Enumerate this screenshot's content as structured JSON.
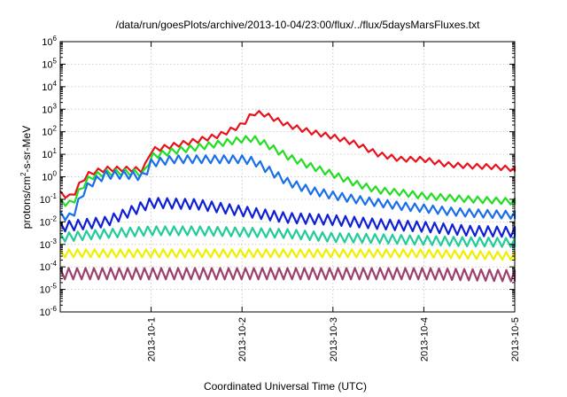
{
  "chart_data": {
    "type": "line",
    "title": "/data/run/goesPlots/archive/2013-10-04/23:00/flux/../flux/5daysMarsFluxes.txt",
    "xlabel": "Coordinated Universal Time (UTC)",
    "ylabel_main": "protons/cm",
    "ylabel_sup": "2",
    "ylabel_rest": "-s-sr-MeV",
    "x_range": [
      "2013-09-30 00:00",
      "2013-10-05 00:00"
    ],
    "x_ticks": [
      {
        "label": "2013-10-1",
        "value": "2013-10-01 00:00"
      },
      {
        "label": "2013-10-2",
        "value": "2013-10-02 00:00"
      },
      {
        "label": "2013-10-3",
        "value": "2013-10-03 00:00"
      },
      {
        "label": "2013-10-4",
        "value": "2013-10-04 00:00"
      },
      {
        "label": "2013-10-5",
        "value": "2013-10-05 00:00"
      }
    ],
    "y_scale": "log",
    "y_range": [
      1e-06,
      1000000.0
    ],
    "y_ticks": [
      {
        "base": "10",
        "exp": "-6",
        "value": 1e-06
      },
      {
        "base": "10",
        "exp": "-5",
        "value": 1e-05
      },
      {
        "base": "10",
        "exp": "-4",
        "value": 0.0001
      },
      {
        "base": "10",
        "exp": "-3",
        "value": 0.001
      },
      {
        "base": "10",
        "exp": "-2",
        "value": 0.01
      },
      {
        "base": "10",
        "exp": "-1",
        "value": 0.1
      },
      {
        "base": "10",
        "exp": "0",
        "value": 1
      },
      {
        "base": "10",
        "exp": "1",
        "value": 10
      },
      {
        "base": "10",
        "exp": "2",
        "value": 100
      },
      {
        "base": "10",
        "exp": "3",
        "value": 1000
      },
      {
        "base": "10",
        "exp": "4",
        "value": 10000
      },
      {
        "base": "10",
        "exp": "5",
        "value": 100000
      },
      {
        "base": "10",
        "exp": "6",
        "value": 1000000
      }
    ],
    "grid": true,
    "series": [
      {
        "color": "#e8111c",
        "points": [
          [
            "2013-09-30 00:00",
            0.18
          ],
          [
            "2013-09-30 03:00",
            0.12
          ],
          [
            "2013-09-30 06:00",
            0.8
          ],
          [
            "2013-09-30 08:00",
            1.5
          ],
          [
            "2013-09-30 12:00",
            2.2
          ],
          [
            "2013-09-30 18:00",
            2.2
          ],
          [
            "2013-09-30 22:00",
            2.0
          ],
          [
            "2013-10-01 00:00",
            15
          ],
          [
            "2013-10-01 06:00",
            25
          ],
          [
            "2013-10-01 12:00",
            40
          ],
          [
            "2013-10-01 18:00",
            70
          ],
          [
            "2013-10-02 00:00",
            200
          ],
          [
            "2013-10-02 03:00",
            700
          ],
          [
            "2013-10-02 06:00",
            600
          ],
          [
            "2013-10-02 12:00",
            200
          ],
          [
            "2013-10-02 18:00",
            100
          ],
          [
            "2013-10-03 00:00",
            60
          ],
          [
            "2013-10-03 06:00",
            30
          ],
          [
            "2013-10-03 12:00",
            10
          ],
          [
            "2013-10-03 18:00",
            6
          ],
          [
            "2013-10-04 00:00",
            6
          ],
          [
            "2013-10-04 06:00",
            3.5
          ],
          [
            "2013-10-04 12:00",
            3
          ],
          [
            "2013-10-04 18:00",
            2.8
          ],
          [
            "2013-10-05 00:00",
            2.2
          ]
        ]
      },
      {
        "color": "#22dd22",
        "points": [
          [
            "2013-09-30 00:00",
            0.08
          ],
          [
            "2013-09-30 03:00",
            0.06
          ],
          [
            "2013-09-30 06:00",
            0.4
          ],
          [
            "2013-09-30 08:00",
            1.0
          ],
          [
            "2013-09-30 12:00",
            1.5
          ],
          [
            "2013-09-30 18:00",
            1.6
          ],
          [
            "2013-09-30 22:00",
            1.4
          ],
          [
            "2013-10-01 00:00",
            8
          ],
          [
            "2013-10-01 06:00",
            14
          ],
          [
            "2013-10-01 12:00",
            20
          ],
          [
            "2013-10-01 18:00",
            30
          ],
          [
            "2013-10-02 00:00",
            45
          ],
          [
            "2013-10-02 03:00",
            50
          ],
          [
            "2013-10-02 06:00",
            30
          ],
          [
            "2013-10-02 12:00",
            8
          ],
          [
            "2013-10-02 18:00",
            3
          ],
          [
            "2013-10-03 00:00",
            1.3
          ],
          [
            "2013-10-03 06:00",
            0.5
          ],
          [
            "2013-10-03 12:00",
            0.25
          ],
          [
            "2013-10-03 18:00",
            0.2
          ],
          [
            "2013-10-04 00:00",
            0.14
          ],
          [
            "2013-10-04 06:00",
            0.12
          ],
          [
            "2013-10-04 12:00",
            0.1
          ],
          [
            "2013-10-04 18:00",
            0.09
          ],
          [
            "2013-10-05 00:00",
            0.08
          ]
        ]
      },
      {
        "color": "#1a6fe8",
        "points": [
          [
            "2013-09-30 00:00",
            0.02
          ],
          [
            "2013-09-30 03:00",
            0.015
          ],
          [
            "2013-09-30 06:00",
            0.2
          ],
          [
            "2013-09-30 08:00",
            0.5
          ],
          [
            "2013-09-30 12:00",
            1.2
          ],
          [
            "2013-09-30 18:00",
            1.2
          ],
          [
            "2013-09-30 22:00",
            1.0
          ],
          [
            "2013-10-01 00:00",
            4
          ],
          [
            "2013-10-01 06:00",
            6
          ],
          [
            "2013-10-01 12:00",
            6
          ],
          [
            "2013-10-01 18:00",
            6
          ],
          [
            "2013-10-02 00:00",
            6
          ],
          [
            "2013-10-02 03:00",
            5
          ],
          [
            "2013-10-02 06:00",
            2.5
          ],
          [
            "2013-10-02 12:00",
            0.6
          ],
          [
            "2013-10-02 18:00",
            0.25
          ],
          [
            "2013-10-03 00:00",
            0.15
          ],
          [
            "2013-10-03 06:00",
            0.1
          ],
          [
            "2013-10-03 12:00",
            0.07
          ],
          [
            "2013-10-03 18:00",
            0.05
          ],
          [
            "2013-10-04 00:00",
            0.04
          ],
          [
            "2013-10-04 06:00",
            0.03
          ],
          [
            "2013-10-04 12:00",
            0.025
          ],
          [
            "2013-10-04 18:00",
            0.022
          ],
          [
            "2013-10-05 00:00",
            0.02
          ]
        ]
      },
      {
        "color": "#0e1fd4",
        "points": [
          [
            "2013-09-30 00:00",
            0.006
          ],
          [
            "2013-09-30 12:00",
            0.01
          ],
          [
            "2013-10-01 00:00",
            0.07
          ],
          [
            "2013-10-01 12:00",
            0.06
          ],
          [
            "2013-10-02 00:00",
            0.03
          ],
          [
            "2013-10-02 12:00",
            0.015
          ],
          [
            "2013-10-03 00:00",
            0.012
          ],
          [
            "2013-10-03 12:00",
            0.008
          ],
          [
            "2013-10-04 00:00",
            0.006
          ],
          [
            "2013-10-04 12:00",
            0.004
          ],
          [
            "2013-10-05 00:00",
            0.0035
          ]
        ]
      },
      {
        "color": "#22cc99",
        "points": [
          [
            "2013-09-30 00:00",
            0.002
          ],
          [
            "2013-09-30 12:00",
            0.003
          ],
          [
            "2013-10-01 00:00",
            0.004
          ],
          [
            "2013-10-01 12:00",
            0.004
          ],
          [
            "2013-10-02 00:00",
            0.0035
          ],
          [
            "2013-10-02 12:00",
            0.003
          ],
          [
            "2013-10-03 00:00",
            0.002
          ],
          [
            "2013-10-03 12:00",
            0.0018
          ],
          [
            "2013-10-04 00:00",
            0.0015
          ],
          [
            "2013-10-04 12:00",
            0.0013
          ],
          [
            "2013-10-05 00:00",
            0.0012
          ]
        ]
      },
      {
        "color": "#efef00",
        "points": [
          [
            "2013-09-30 00:00",
            0.0004
          ],
          [
            "2013-10-01 00:00",
            0.0004
          ],
          [
            "2013-10-02 00:00",
            0.0004
          ],
          [
            "2013-10-03 00:00",
            0.0004
          ],
          [
            "2013-10-04 00:00",
            0.0004
          ],
          [
            "2013-10-05 00:00",
            0.0003
          ]
        ]
      },
      {
        "color": "#9e3f6e",
        "points": [
          [
            "2013-09-30 00:00",
            5e-05
          ],
          [
            "2013-10-01 00:00",
            5e-05
          ],
          [
            "2013-10-02 00:00",
            5e-05
          ],
          [
            "2013-10-03 00:00",
            5e-05
          ],
          [
            "2013-10-04 00:00",
            5e-05
          ],
          [
            "2013-10-05 00:00",
            4e-05
          ]
        ]
      }
    ]
  }
}
